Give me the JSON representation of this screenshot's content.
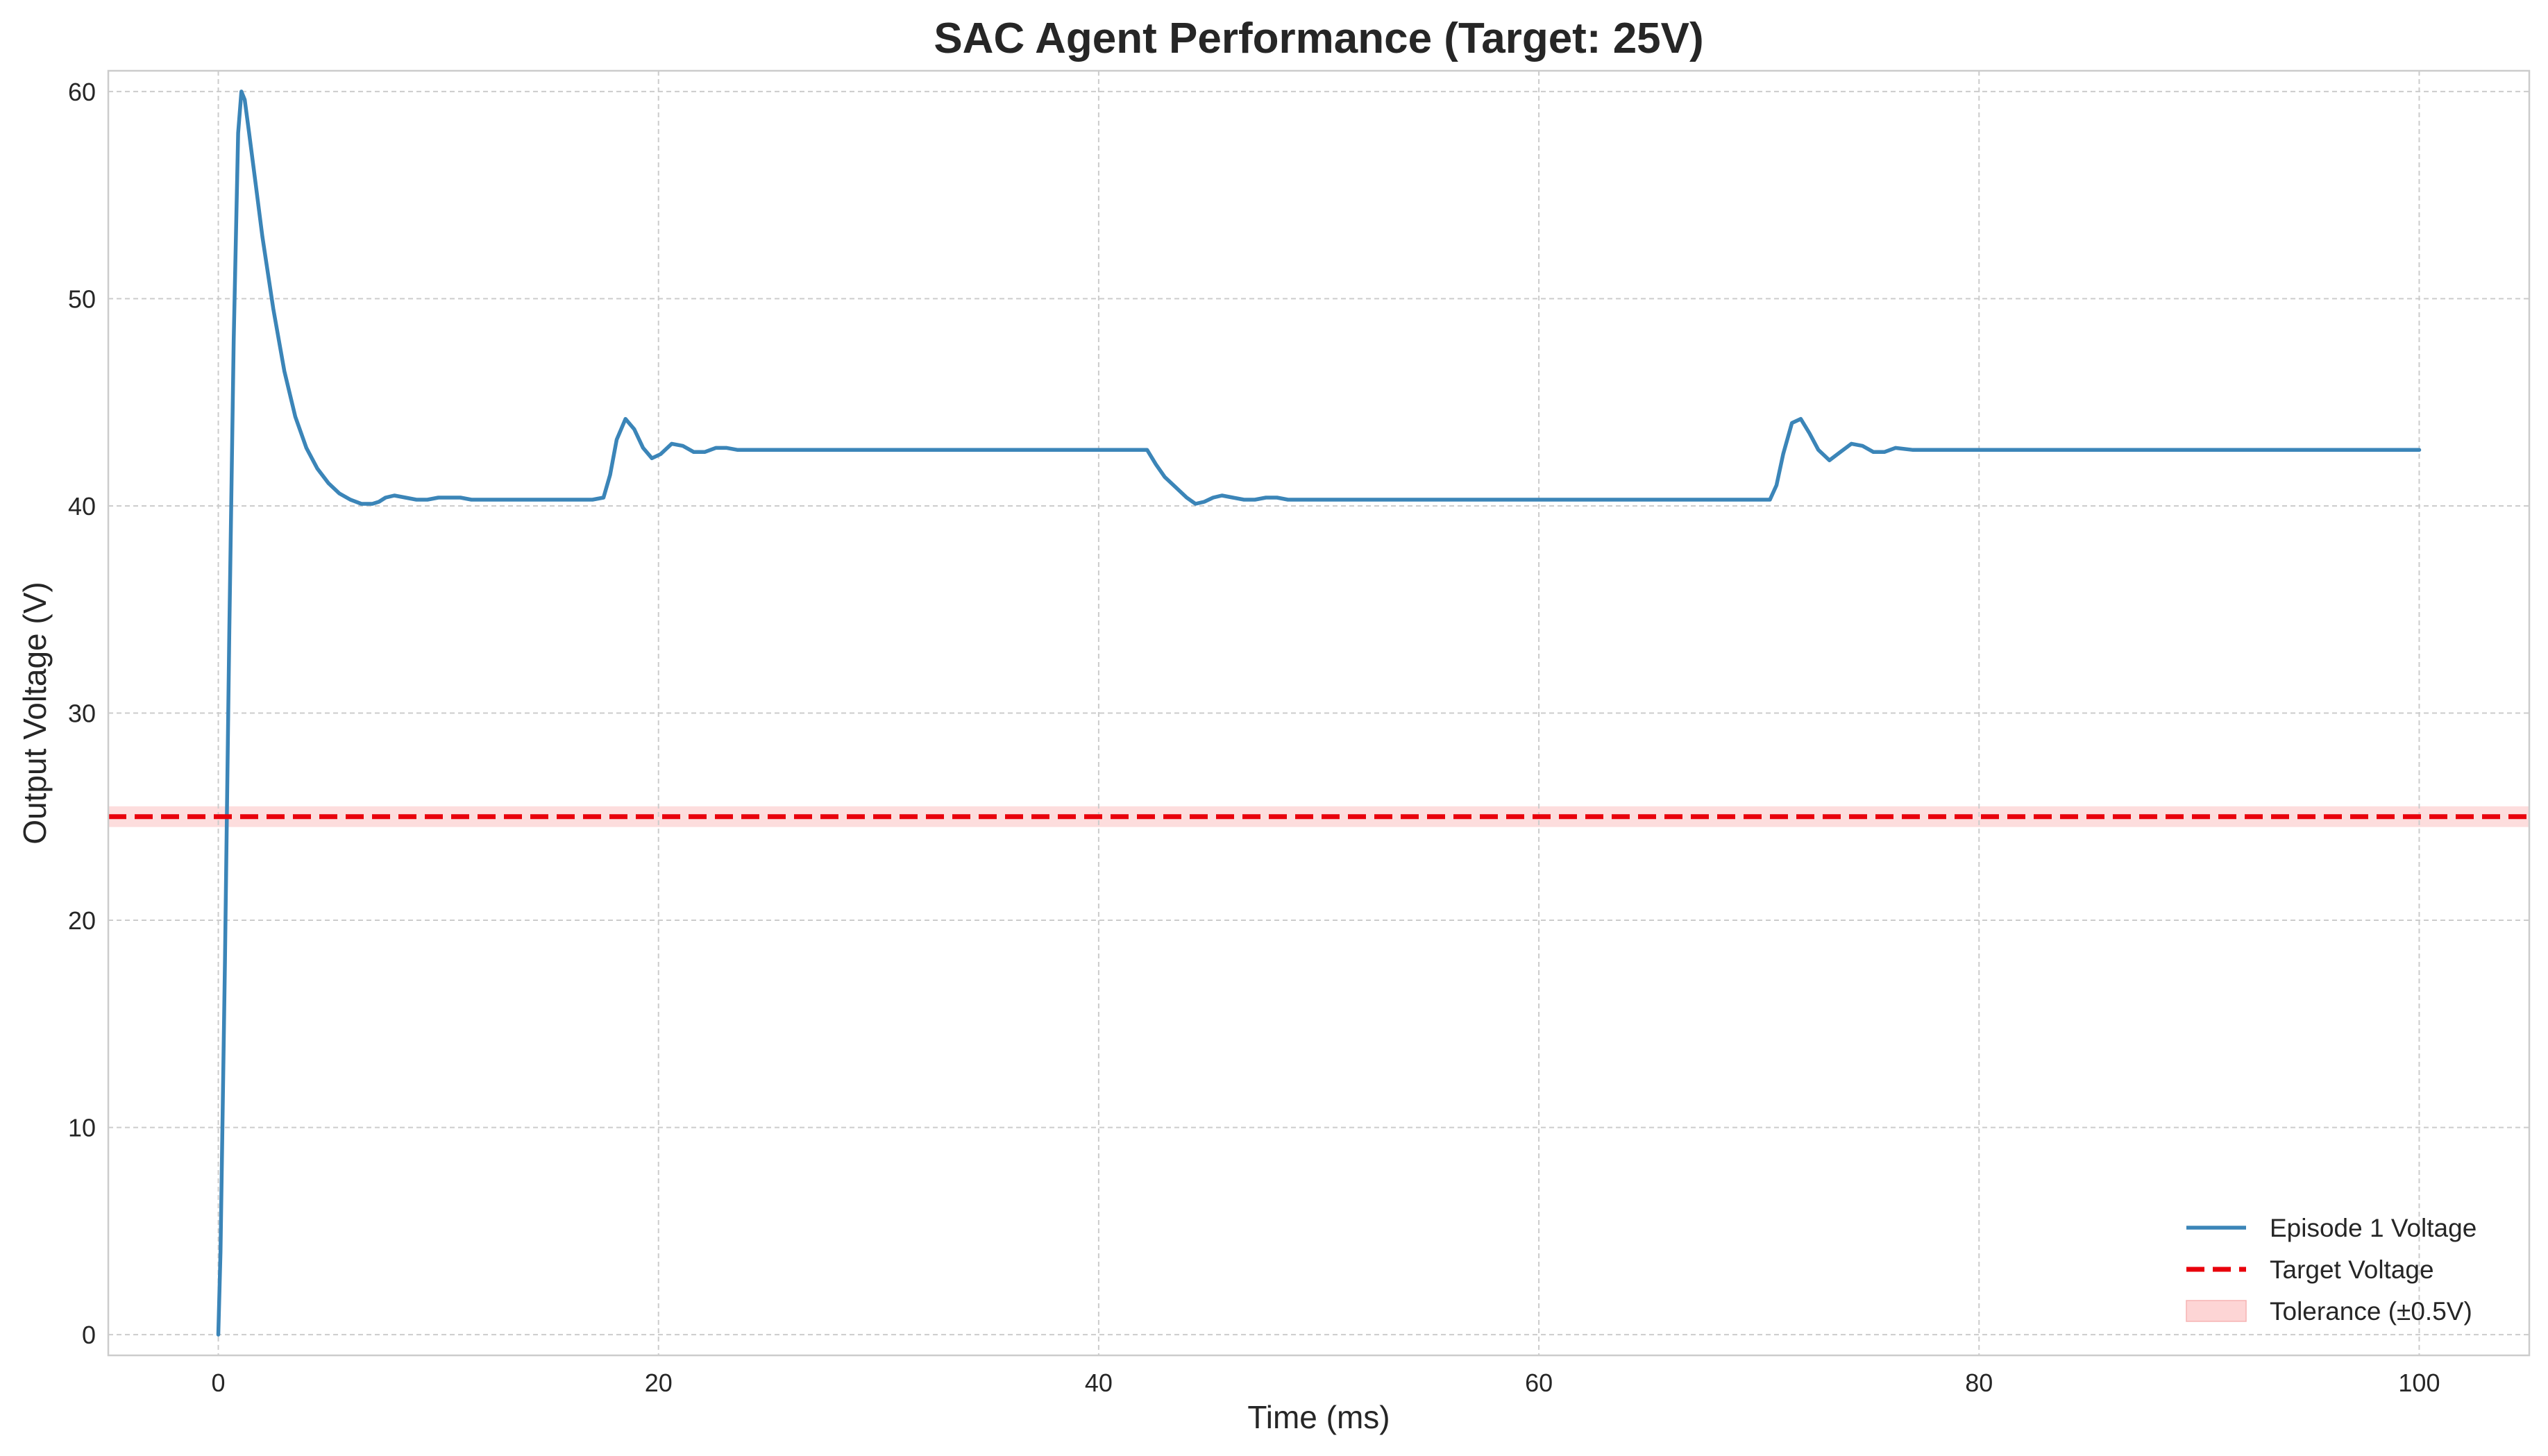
{
  "chart_data": {
    "type": "line",
    "title": "SAC Agent Performance (Target: 25V)",
    "xlabel": "Time (ms)",
    "ylabel": "Output Voltage (V)",
    "xlim": [
      -5,
      105
    ],
    "ylim": [
      -1,
      61
    ],
    "xticks": [
      0,
      20,
      40,
      60,
      80,
      100
    ],
    "yticks": [
      0,
      10,
      20,
      30,
      40,
      50,
      60
    ],
    "xtick_labels": [
      "0",
      "20",
      "40",
      "60",
      "80",
      "100"
    ],
    "ytick_labels": [
      "0",
      "10",
      "20",
      "30",
      "40",
      "50",
      "60"
    ],
    "grid": true,
    "legend_position": "bottom-right",
    "series": [
      {
        "name": "Episode 1 Voltage",
        "style": "solid",
        "color": "#3b85b8",
        "x": [
          0,
          0.1,
          0.3,
          0.5,
          0.7,
          0.9,
          1.05,
          1.2,
          1.4,
          1.7,
          2.0,
          2.5,
          3.0,
          3.5,
          4.0,
          4.5,
          5.0,
          5.5,
          6.0,
          6.5,
          7.0,
          7.3,
          7.6,
          8.0,
          8.5,
          9.0,
          9.5,
          10.0,
          10.5,
          11.0,
          11.5,
          12.0,
          13.0,
          14.0,
          15.0,
          16.0,
          17.0,
          17.5,
          17.8,
          18.1,
          18.5,
          18.9,
          19.3,
          19.7,
          20.1,
          20.6,
          21.1,
          21.6,
          22.1,
          22.6,
          23.1,
          23.6,
          24.1,
          24.6,
          25.5,
          26.5,
          27.5,
          30,
          35,
          40,
          42.2,
          42.6,
          43.0,
          43.5,
          44.0,
          44.4,
          44.8,
          45.2,
          45.6,
          46.1,
          46.6,
          47.1,
          47.6,
          48.1,
          48.6,
          49.5,
          50.5,
          52,
          55,
          60,
          65,
          70.5,
          70.8,
          71.1,
          71.5,
          71.9,
          72.3,
          72.7,
          73.2,
          73.7,
          74.2,
          74.7,
          75.2,
          75.7,
          76.2,
          77.0,
          78.0,
          80,
          85,
          90,
          95,
          100
        ],
        "y": [
          0,
          4,
          18,
          34,
          48,
          58,
          60,
          59.6,
          58,
          55.5,
          53,
          49.5,
          46.5,
          44.3,
          42.8,
          41.8,
          41.1,
          40.6,
          40.3,
          40.1,
          40.1,
          40.2,
          40.4,
          40.5,
          40.4,
          40.3,
          40.3,
          40.4,
          40.4,
          40.4,
          40.3,
          40.3,
          40.3,
          40.3,
          40.3,
          40.3,
          40.3,
          40.4,
          41.5,
          43.2,
          44.2,
          43.7,
          42.8,
          42.3,
          42.5,
          43.0,
          42.9,
          42.6,
          42.6,
          42.8,
          42.8,
          42.7,
          42.7,
          42.7,
          42.7,
          42.7,
          42.7,
          42.7,
          42.7,
          42.7,
          42.7,
          42.0,
          41.4,
          40.9,
          40.4,
          40.1,
          40.2,
          40.4,
          40.5,
          40.4,
          40.3,
          40.3,
          40.4,
          40.4,
          40.3,
          40.3,
          40.3,
          40.3,
          40.3,
          40.3,
          40.3,
          40.3,
          41.0,
          42.5,
          44.0,
          44.2,
          43.5,
          42.7,
          42.2,
          42.6,
          43.0,
          42.9,
          42.6,
          42.6,
          42.8,
          42.7,
          42.7,
          42.7,
          42.7,
          42.7,
          42.7,
          42.7
        ]
      },
      {
        "name": "Target Voltage",
        "style": "dashed",
        "color": "#e8000b",
        "y": 25
      }
    ],
    "band": {
      "name": "Tolerance (±0.5V)",
      "color": "#fdd5d5",
      "range": [
        24.5,
        25.5
      ]
    }
  }
}
